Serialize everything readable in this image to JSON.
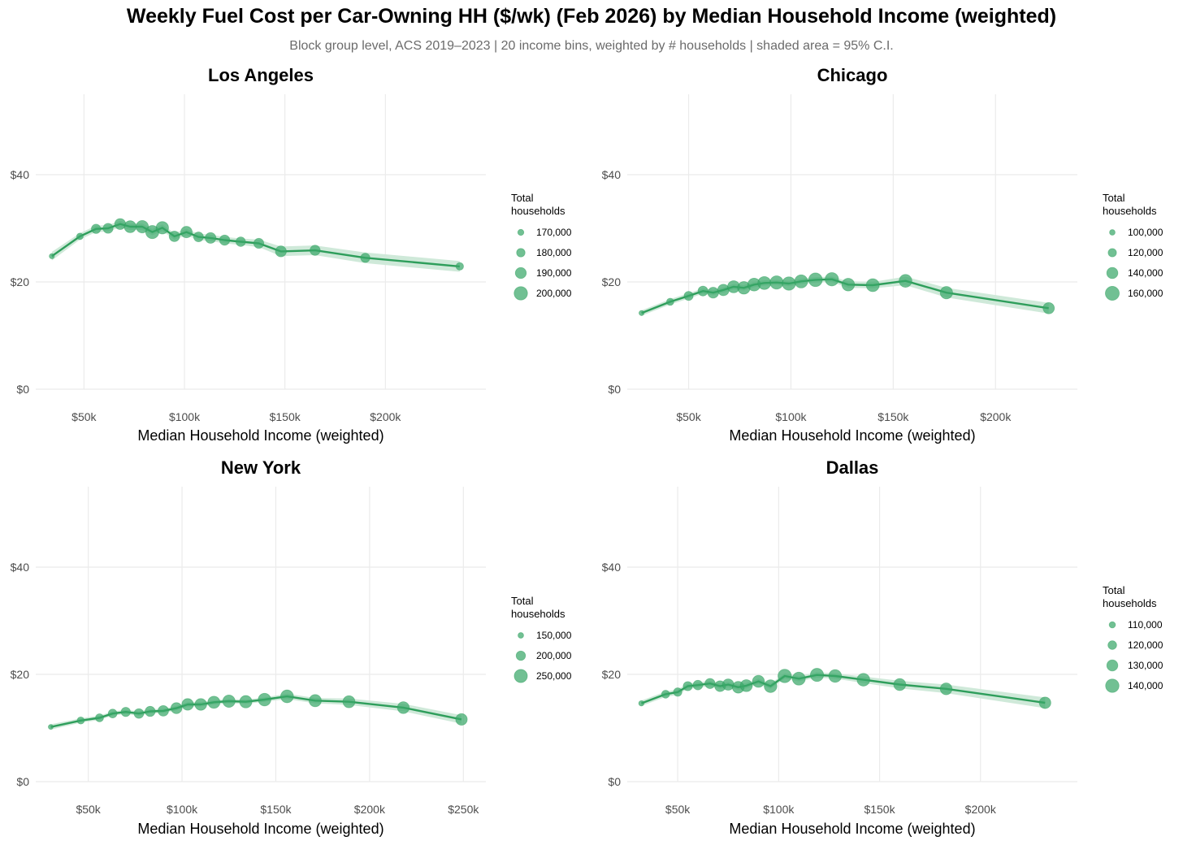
{
  "title": "Weekly Fuel Cost per Car-Owning HH ($/wk) (Feb 2026) by Median Household Income (weighted)",
  "subtitle": "Block group level, ACS 2019–2023 | 20 income bins, weighted by # households | shaded area = 95% C.I.",
  "colors": {
    "line": "#2e9e5b",
    "point": "#3aa86a",
    "ribbon": "#cfe9d9",
    "grid": "#ebebeb",
    "axis_text": "#4d4d4d"
  },
  "chart_data": [
    {
      "type": "scatter",
      "title": "Los Angeles",
      "xlabel": "Median Household Income (weighted)",
      "ylabel": "",
      "xlim": [
        26,
        250
      ],
      "ylim": [
        0,
        55
      ],
      "x_ticks": [
        50,
        100,
        150,
        200
      ],
      "x_tick_labels": [
        "$50k",
        "$100k",
        "$150k",
        "$200k"
      ],
      "y_ticks": [
        0,
        20,
        40
      ],
      "y_tick_labels": [
        "$0",
        "$20",
        "$40"
      ],
      "legend_title": "Total\nhouseholds",
      "legend_items": [
        {
          "label": "170,000",
          "value": 170000
        },
        {
          "label": "180,000",
          "value": 180000
        },
        {
          "label": "190,000",
          "value": 190000
        },
        {
          "label": "200,000",
          "value": 200000
        }
      ],
      "size_range": [
        165000,
        205000
      ],
      "x": [
        34,
        48,
        56,
        62,
        68,
        73,
        79,
        84,
        89,
        95,
        101,
        107,
        113,
        120,
        128,
        137,
        148,
        165,
        190,
        237
      ],
      "y": [
        24.8,
        28.5,
        29.9,
        30.0,
        30.8,
        30.3,
        30.3,
        29.3,
        30.1,
        28.5,
        29.3,
        28.4,
        28.2,
        27.8,
        27.5,
        27.2,
        25.7,
        25.9,
        24.5,
        22.9
      ],
      "ci_half": [
        0.8,
        0.6,
        0.6,
        0.6,
        0.6,
        0.6,
        0.6,
        0.6,
        0.6,
        0.6,
        0.6,
        0.6,
        0.6,
        0.6,
        0.6,
        0.7,
        0.9,
        0.9,
        1.0,
        1.0
      ],
      "households": [
        166000,
        172000,
        183000,
        186000,
        190000,
        194000,
        196000,
        199000,
        196000,
        188000,
        192000,
        185000,
        189000,
        187000,
        184000,
        186000,
        190000,
        187000,
        183000,
        176000
      ]
    },
    {
      "type": "scatter",
      "title": "Chicago",
      "xlabel": "Median Household Income (weighted)",
      "ylabel": "",
      "xlim": [
        20,
        240
      ],
      "ylim": [
        0,
        55
      ],
      "x_ticks": [
        50,
        100,
        150,
        200
      ],
      "x_tick_labels": [
        "$50k",
        "$100k",
        "$150k",
        "$200k"
      ],
      "y_ticks": [
        0,
        20,
        40
      ],
      "y_tick_labels": [
        "$0",
        "$20",
        "$40"
      ],
      "legend_title": "Total\nhouseholds",
      "legend_items": [
        {
          "label": "100,000",
          "value": 100000
        },
        {
          "label": "120,000",
          "value": 120000
        },
        {
          "label": "140,000",
          "value": 140000
        },
        {
          "label": "160,000",
          "value": 160000
        }
      ],
      "size_range": [
        95000,
        165000
      ],
      "x": [
        27,
        41,
        50,
        57,
        62,
        67,
        72,
        77,
        82,
        87,
        93,
        99,
        105,
        112,
        120,
        128,
        140,
        156,
        176,
        226
      ],
      "y": [
        14.2,
        16.3,
        17.4,
        18.3,
        18.0,
        18.5,
        19.1,
        18.9,
        19.5,
        19.8,
        19.9,
        19.7,
        20.1,
        20.4,
        20.5,
        19.5,
        19.4,
        20.2,
        18.0,
        15.1
      ],
      "ci_half": [
        0.5,
        0.5,
        0.5,
        0.5,
        0.5,
        0.5,
        0.5,
        0.5,
        0.5,
        0.5,
        0.5,
        0.5,
        0.5,
        0.5,
        0.5,
        0.6,
        0.6,
        0.8,
        0.9,
        1.0
      ],
      "households": [
        97000,
        112000,
        125000,
        131000,
        138000,
        142000,
        147000,
        150000,
        152000,
        153000,
        155000,
        156000,
        154000,
        158000,
        156000,
        151000,
        153000,
        152000,
        149000,
        141000
      ]
    },
    {
      "type": "scatter",
      "title": "New York",
      "xlabel": "Median Household Income (weighted)",
      "ylabel": "",
      "xlim": [
        22,
        262
      ],
      "ylim": [
        0,
        55
      ],
      "x_ticks": [
        50,
        100,
        150,
        200,
        250
      ],
      "x_tick_labels": [
        "$50k",
        "$100k",
        "$150k",
        "$200k",
        "$250k"
      ],
      "y_ticks": [
        0,
        20,
        40
      ],
      "y_tick_labels": [
        "$0",
        "$20",
        "$40"
      ],
      "legend_title": "Total\nhouseholds",
      "legend_items": [
        {
          "label": "150,000",
          "value": 150000
        },
        {
          "label": "200,000",
          "value": 200000
        },
        {
          "label": "250,000",
          "value": 250000
        }
      ],
      "size_range": [
        140000,
        270000
      ],
      "x": [
        30,
        46,
        56,
        63,
        70,
        77,
        83,
        90,
        97,
        103,
        110,
        117,
        125,
        134,
        144,
        156,
        171,
        189,
        218,
        249
      ],
      "y": [
        10.2,
        11.4,
        11.9,
        12.7,
        13.0,
        12.7,
        13.1,
        13.2,
        13.7,
        14.4,
        14.4,
        14.8,
        15.0,
        14.9,
        15.3,
        15.9,
        15.1,
        14.9,
        13.8,
        11.6
      ],
      "ci_half": [
        0.5,
        0.4,
        0.4,
        0.4,
        0.4,
        0.4,
        0.4,
        0.4,
        0.4,
        0.4,
        0.4,
        0.4,
        0.4,
        0.4,
        0.4,
        0.5,
        0.5,
        0.6,
        0.7,
        0.8
      ],
      "households": [
        138000,
        170000,
        182000,
        192000,
        199000,
        204000,
        210000,
        216000,
        222000,
        230000,
        232000,
        237000,
        240000,
        240000,
        244000,
        246000,
        238000,
        236000,
        233000,
        229000
      ]
    },
    {
      "type": "scatter",
      "title": "Dallas",
      "xlabel": "Median Household Income (weighted)",
      "ylabel": "",
      "xlim": [
        25,
        248
      ],
      "ylim": [
        0,
        55
      ],
      "x_ticks": [
        50,
        100,
        150,
        200
      ],
      "x_tick_labels": [
        "$50k",
        "$100k",
        "$150k",
        "$200k"
      ],
      "y_ticks": [
        0,
        20,
        40
      ],
      "y_tick_labels": [
        "$0",
        "$20",
        "$40"
      ],
      "legend_title": "Total\nhouseholds",
      "legend_items": [
        {
          "label": "110,000",
          "value": 110000
        },
        {
          "label": "120,000",
          "value": 120000
        },
        {
          "label": "130,000",
          "value": 130000
        },
        {
          "label": "140,000",
          "value": 140000
        }
      ],
      "size_range": [
        104000,
        145000
      ],
      "x": [
        32,
        44,
        50,
        55,
        60,
        66,
        71,
        75,
        80,
        84,
        90,
        96,
        103,
        110,
        119,
        128,
        142,
        160,
        183,
        232
      ],
      "y": [
        14.6,
        16.3,
        16.7,
        17.8,
        18.0,
        18.3,
        17.8,
        18.1,
        17.6,
        17.9,
        18.7,
        17.8,
        19.7,
        19.2,
        19.9,
        19.7,
        19.0,
        18.1,
        17.3,
        14.7
      ],
      "ci_half": [
        0.5,
        0.5,
        0.5,
        0.5,
        0.5,
        0.5,
        0.5,
        0.5,
        0.5,
        0.5,
        0.5,
        0.5,
        0.5,
        0.5,
        0.5,
        0.5,
        0.6,
        0.7,
        0.8,
        1.0
      ],
      "households": [
        106000,
        117000,
        119000,
        122000,
        124000,
        126000,
        129000,
        131000,
        133000,
        134000,
        134000,
        137000,
        140000,
        138000,
        139000,
        137000,
        137000,
        134000,
        133000,
        132000
      ]
    }
  ]
}
